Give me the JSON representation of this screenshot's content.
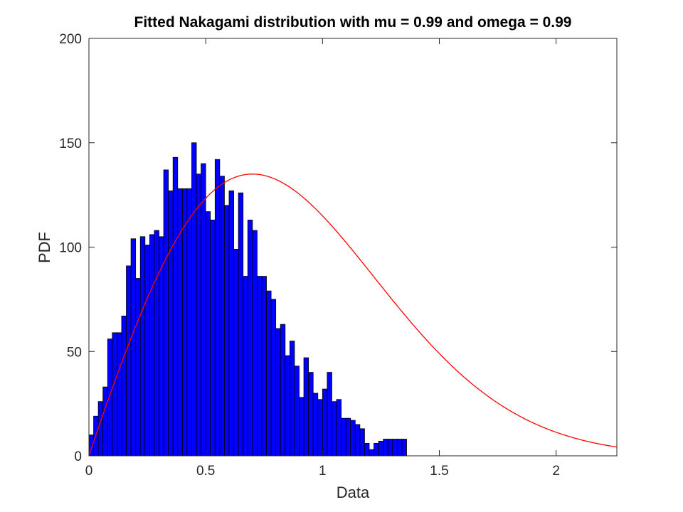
{
  "chart_data": {
    "type": "bar",
    "title": "Fitted Nakagami distribution with mu = 0.99 and omega = 0.99",
    "xlabel": "Data",
    "ylabel": "PDF",
    "xlim": [
      0,
      2.26
    ],
    "ylim": [
      0,
      200
    ],
    "xticks": [
      "0",
      "0.5",
      "1",
      "1.5",
      "2"
    ],
    "yticks": [
      "0",
      "50",
      "100",
      "150",
      "200"
    ],
    "grid": false,
    "bin_width": 0.02,
    "values": [
      10,
      19,
      26,
      33,
      56,
      59,
      59,
      67,
      91,
      104,
      85,
      105,
      101,
      106,
      108,
      105,
      137,
      127,
      143,
      128,
      128,
      128,
      150,
      135,
      140,
      117,
      113,
      142,
      134,
      120,
      127,
      99,
      126,
      86,
      113,
      108,
      86,
      86,
      79,
      75,
      61,
      63,
      48,
      55,
      43,
      28,
      47,
      40,
      30,
      27,
      32,
      40,
      26,
      27,
      18,
      18,
      17,
      15,
      13,
      6,
      3,
      6,
      7,
      8,
      8,
      8,
      8,
      8
    ],
    "fit": {
      "name": "Nakagami",
      "mu": 0.99,
      "omega": 0.99,
      "peak_x": 0.71,
      "peak_y": 135
    },
    "colors": {
      "bars": "#0000ff",
      "bar_edge": "#000000",
      "fit_line": "#ff0000",
      "axis": "#262626"
    }
  }
}
